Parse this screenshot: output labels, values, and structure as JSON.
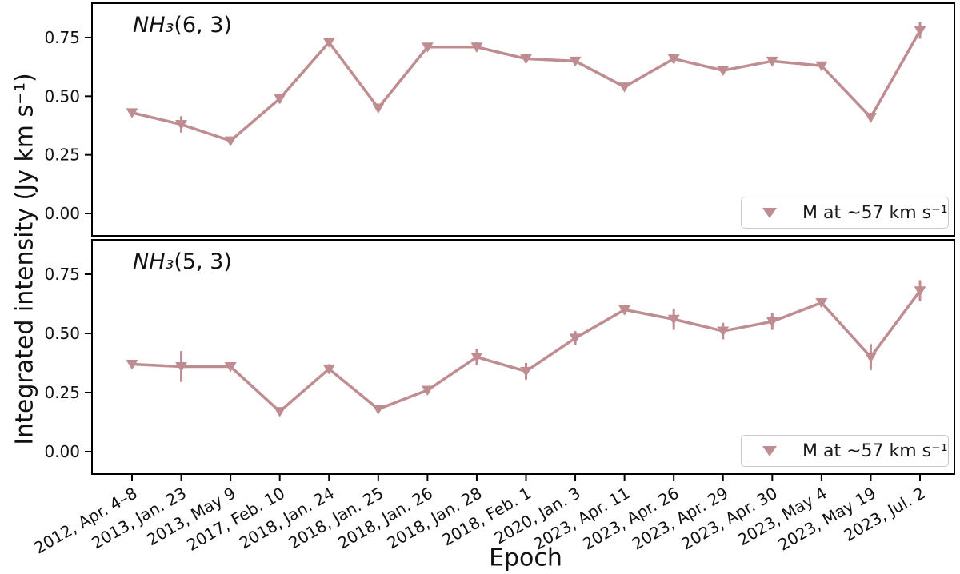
{
  "figure": {
    "xlabel": "Epoch",
    "ylabel": "Integrated intensity (Jy km s⁻¹)",
    "background": "#ffffff",
    "accent_color": "#bf8c91",
    "axis_color": "#000000",
    "text_color": "#111111",
    "legend_border_color": "#c9c9c9"
  },
  "chart_data": {
    "type": "line",
    "x_axis_label": "Epoch",
    "y_axis_label": "Integrated intensity (Jy km s⁻¹)",
    "categories": [
      "2012, Apr. 4–8",
      "2013, Jan. 23",
      "2013, May 9",
      "2017, Feb. 10",
      "2018, Jan. 24",
      "2018, Jan. 25",
      "2018, Jan. 26",
      "2018, Jan. 28",
      "2018, Feb. 1",
      "2020, Jan. 3",
      "2023, Apr. 11",
      "2023, Apr. 26",
      "2023, Apr. 29",
      "2023, Apr. 30",
      "2023, May 4",
      "2023, May 19",
      "2023, Jul. 2"
    ],
    "yticks": [
      0,
      0.25,
      0.5,
      0.75
    ],
    "ytick_labels": [
      "0.00",
      "0.25",
      "0.50",
      "0.75"
    ],
    "ylim": [
      -0.09,
      0.9
    ],
    "grid": false,
    "marker": "triangle-down",
    "legend_position": "lower right",
    "panels": [
      {
        "title_prefix": "NH₃",
        "title_suffix": "(6, 3)",
        "legend_label": "M at ~57 km s⁻¹",
        "series": [
          {
            "name": "M at ~57 km s⁻¹",
            "values": [
              0.43,
              0.38,
              0.31,
              0.49,
              0.73,
              0.45,
              0.71,
              0.71,
              0.66,
              0.65,
              0.54,
              0.66,
              0.61,
              0.65,
              0.63,
              0.41,
              0.78
            ],
            "errors": [
              0.012,
              0.035,
              0.015,
              0.02,
              0.012,
              0.015,
              0.012,
              0.02,
              0.015,
              0.012,
              0.012,
              0.02,
              0.015,
              0.015,
              0.012,
              0.02,
              0.035
            ]
          }
        ]
      },
      {
        "title_prefix": "NH₃",
        "title_suffix": "(5, 3)",
        "legend_label": "M at ~57 km s⁻¹",
        "series": [
          {
            "name": "M at ~57 km s⁻¹",
            "values": [
              0.37,
              0.36,
              0.36,
              0.17,
              0.35,
              0.18,
              0.26,
              0.4,
              0.34,
              0.48,
              0.6,
              0.56,
              0.51,
              0.55,
              0.63,
              0.4,
              0.68
            ],
            "errors": [
              0.012,
              0.065,
              0.015,
              0.015,
              0.02,
              0.015,
              0.015,
              0.035,
              0.035,
              0.03,
              0.02,
              0.045,
              0.035,
              0.035,
              0.015,
              0.055,
              0.045
            ]
          }
        ]
      }
    ]
  }
}
